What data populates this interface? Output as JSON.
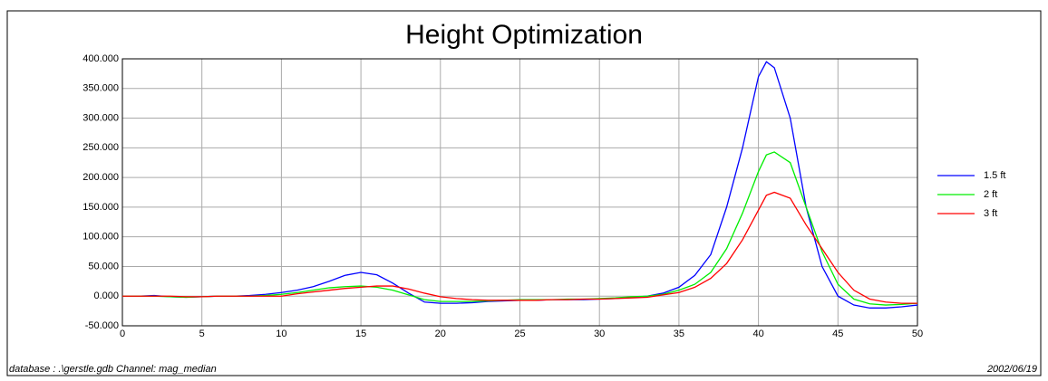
{
  "chart_data": {
    "type": "line",
    "title": "Height Optimization",
    "x": [
      0,
      1,
      2,
      3,
      4,
      5,
      6,
      7,
      8,
      9,
      10,
      11,
      12,
      13,
      14,
      15,
      16,
      17,
      18,
      19,
      20,
      21,
      22,
      23,
      24,
      25,
      26,
      27,
      28,
      29,
      30,
      31,
      32,
      33,
      34,
      35,
      36,
      37,
      38,
      39,
      40,
      40.5,
      41,
      42,
      43,
      44,
      45,
      46,
      47,
      48,
      49,
      50
    ],
    "series": [
      {
        "name": "1.5 ft",
        "color": "#0000ff",
        "values": [
          0,
          0,
          1,
          -1,
          -2,
          -1,
          0,
          0,
          1,
          3,
          6,
          10,
          16,
          25,
          35,
          40,
          36,
          22,
          5,
          -10,
          -12,
          -12,
          -11,
          -9,
          -8,
          -7,
          -7,
          -6,
          -6,
          -6,
          -5,
          -4,
          -2,
          0,
          5,
          15,
          35,
          70,
          150,
          250,
          370,
          395,
          385,
          300,
          150,
          50,
          0,
          -15,
          -20,
          -20,
          -18,
          -15
        ]
      },
      {
        "name": "2 ft",
        "color": "#00ee00",
        "values": [
          0,
          0,
          0,
          -1,
          -2,
          -1,
          0,
          0,
          0,
          1,
          3,
          6,
          10,
          14,
          16,
          17,
          15,
          10,
          2,
          -6,
          -9,
          -9,
          -9,
          -8,
          -7,
          -6,
          -6,
          -6,
          -5,
          -5,
          -4,
          -3,
          -1,
          0,
          3,
          10,
          20,
          40,
          80,
          140,
          210,
          238,
          243,
          225,
          150,
          75,
          20,
          -5,
          -13,
          -15,
          -14,
          -12
        ]
      },
      {
        "name": "3 ft",
        "color": "#ff0000",
        "values": [
          0,
          0,
          0,
          0,
          -1,
          -1,
          0,
          0,
          0,
          0,
          0,
          4,
          7,
          10,
          13,
          15,
          17,
          17,
          12,
          5,
          -1,
          -4,
          -6,
          -7,
          -7,
          -7,
          -7,
          -6,
          -6,
          -5,
          -5,
          -4,
          -3,
          -2,
          2,
          6,
          15,
          30,
          55,
          95,
          145,
          170,
          175,
          165,
          120,
          80,
          40,
          10,
          -5,
          -10,
          -12,
          -12
        ]
      }
    ],
    "xlim": [
      0,
      50
    ],
    "xticks": [
      0,
      5,
      10,
      15,
      20,
      25,
      30,
      35,
      40,
      45,
      50
    ],
    "ylim": [
      -50,
      400
    ],
    "yticks": [
      {
        "value": -50,
        "label": "-50.000"
      },
      {
        "value": 0,
        "label": "0.000"
      },
      {
        "value": 50,
        "label": "50.000"
      },
      {
        "value": 100,
        "label": "100.000"
      },
      {
        "value": 150,
        "label": "150.000"
      },
      {
        "value": 200,
        "label": "200.000"
      },
      {
        "value": 250,
        "label": "250.000"
      },
      {
        "value": 300,
        "label": "300.000"
      },
      {
        "value": 350,
        "label": "350.000"
      },
      {
        "value": 400,
        "label": "400.000"
      }
    ],
    "grid": true,
    "legend": "right",
    "footer_left": "database : .\\gerstle.gdb  Channel: mag_median",
    "footer_right": "2002/06/19"
  }
}
